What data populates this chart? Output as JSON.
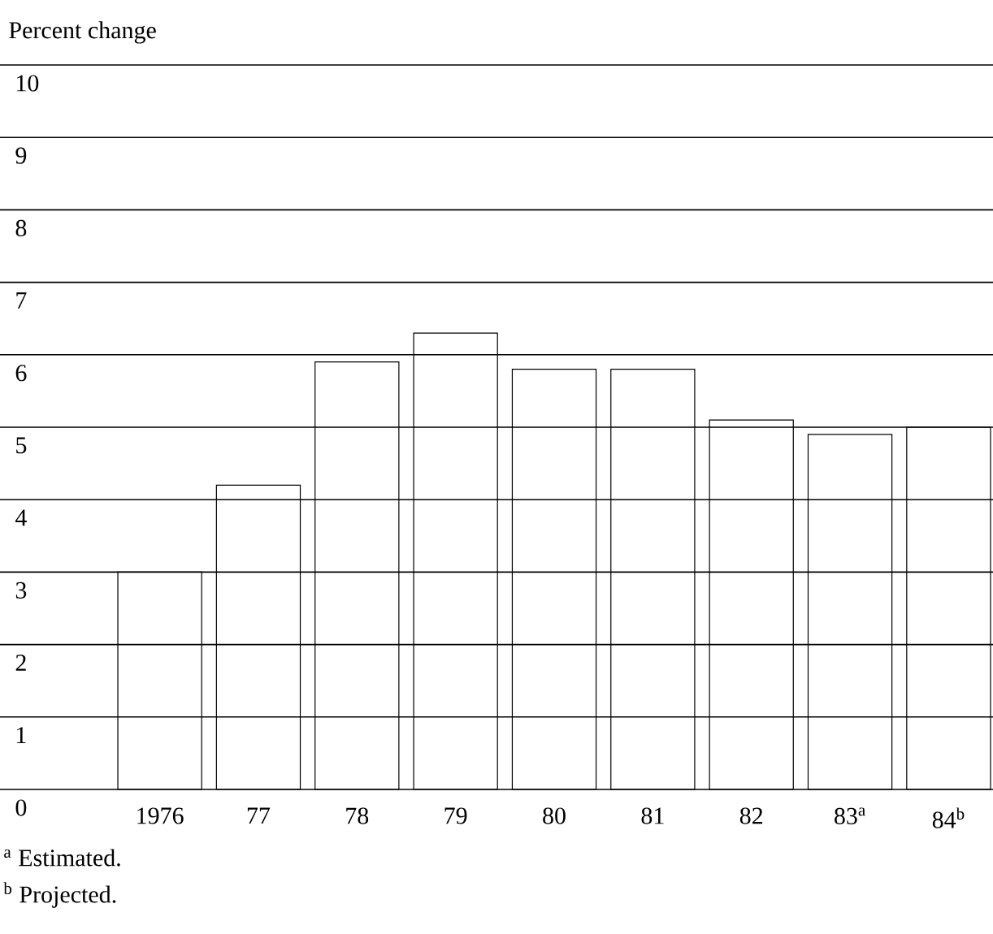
{
  "chart_data": {
    "type": "bar",
    "ylabel": "Percent change",
    "categories": [
      "1976",
      "77",
      "78",
      "79",
      "80",
      "81",
      "82",
      "83$^{a}$",
      "84$^{b}$"
    ],
    "values": [
      3.0,
      4.2,
      5.9,
      6.3,
      5.8,
      5.8,
      5.1,
      4.9,
      5.0
    ],
    "color": "#ffffff",
    "ylim": [
      0,
      10
    ],
    "yticks": [
      0,
      1,
      2,
      3,
      4,
      5,
      6,
      7,
      8,
      9,
      10
    ],
    "grid": "y",
    "annotations": [
      "$^{a}$ Estimated.",
      "$^{b}$ Projected."
    ]
  }
}
